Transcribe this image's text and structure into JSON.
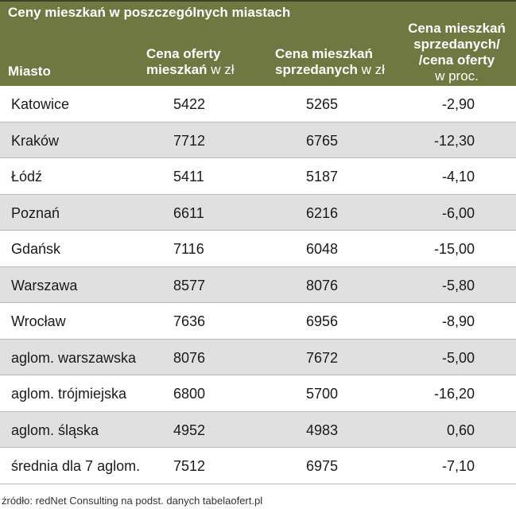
{
  "chart_data": {
    "type": "table",
    "title": "Ceny mieszkań w poszczególnych miastach",
    "columns": [
      {
        "bold": "Miasto",
        "light": ""
      },
      {
        "bold": "Cena oferty mieszkań",
        "light": "w zł"
      },
      {
        "bold": "Cena mieszkań sprzedanych",
        "light": "w zł"
      },
      {
        "bold": "Cena mieszkań sprzedanych/ /cena oferty",
        "light": "w proc."
      }
    ],
    "rows": [
      [
        "Katowice",
        "5422",
        "5265",
        "-2,90"
      ],
      [
        "Kraków",
        "7712",
        "6765",
        "-12,30"
      ],
      [
        "Łódź",
        "5411",
        "5187",
        "-4,10"
      ],
      [
        "Poznań",
        "6611",
        "6216",
        "-6,00"
      ],
      [
        "Gdańsk",
        "7116",
        "6048",
        "-15,00"
      ],
      [
        "Warszawa",
        "8577",
        "8076",
        "-5,80"
      ],
      [
        "Wrocław",
        "7636",
        "6956",
        "-8,90"
      ],
      [
        "aglom. warszawska",
        "8076",
        "7672",
        "-5,00"
      ],
      [
        "aglom. trójmiejska",
        "6800",
        "5700",
        "-16,20"
      ],
      [
        "aglom. śląska",
        "4952",
        "4983",
        "0,60"
      ],
      [
        "średnia dla 7 aglom.",
        "7512",
        "6975",
        "-7,10"
      ]
    ],
    "source": "źródło: redNet Consulting na podst. danych tabelaofert.pl",
    "colors": {
      "header": "#6f7841",
      "alt_row": "#e0e0e0"
    }
  }
}
